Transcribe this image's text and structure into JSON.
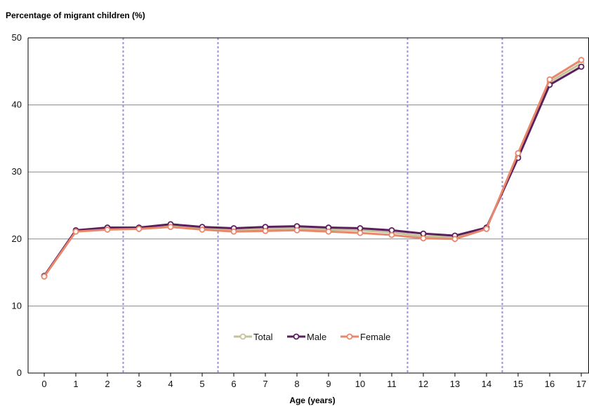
{
  "chart_data": {
    "type": "line",
    "ylabel": "Percentage of migrant children (%)",
    "xlabel": "Age (years)",
    "x": [
      "0",
      "1",
      "2",
      "3",
      "4",
      "5",
      "6",
      "7",
      "8",
      "9",
      "10",
      "11",
      "12",
      "13",
      "14",
      "15",
      "16",
      "17"
    ],
    "ylim": [
      0,
      50
    ],
    "yticks": [
      "0",
      "10",
      "20",
      "30",
      "40",
      "50"
    ],
    "grid": true,
    "vertical_dividers_after": [
      "2",
      "5",
      "11",
      "14"
    ],
    "legend_position": "bottom-center",
    "series": [
      {
        "name": "Total",
        "color": "#c4c29a",
        "values": [
          14.5,
          21.2,
          21.5,
          21.6,
          22.0,
          21.6,
          21.3,
          21.5,
          21.6,
          21.4,
          21.3,
          21.0,
          20.4,
          20.3,
          21.6,
          32.4,
          43.4,
          46.2
        ]
      },
      {
        "name": "Male",
        "color": "#5b1f5e",
        "values": [
          14.5,
          21.3,
          21.7,
          21.7,
          22.2,
          21.8,
          21.6,
          21.8,
          21.9,
          21.7,
          21.6,
          21.3,
          20.8,
          20.5,
          21.7,
          32.1,
          43.0,
          45.7
        ]
      },
      {
        "name": "Female",
        "color": "#e9876b",
        "values": [
          14.4,
          21.1,
          21.4,
          21.5,
          21.8,
          21.4,
          21.1,
          21.2,
          21.3,
          21.1,
          20.9,
          20.6,
          20.1,
          20.0,
          21.5,
          32.8,
          43.8,
          46.7
        ]
      }
    ]
  }
}
